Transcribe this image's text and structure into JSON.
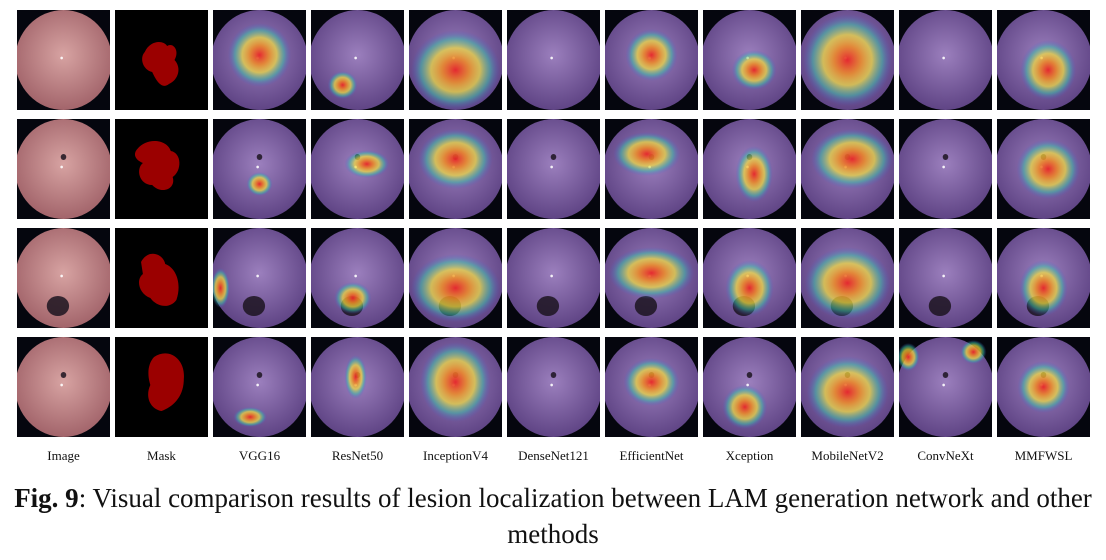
{
  "columns": [
    {
      "label": "Image",
      "kind": "image"
    },
    {
      "label": "Mask",
      "kind": "mask"
    },
    {
      "label": "VGG16",
      "kind": "cam"
    },
    {
      "label": "ResNet50",
      "kind": "cam"
    },
    {
      "label": "InceptionV4",
      "kind": "cam"
    },
    {
      "label": "DenseNet121",
      "kind": "cam"
    },
    {
      "label": "EfficientNet",
      "kind": "cam"
    },
    {
      "label": "Xception",
      "kind": "cam"
    },
    {
      "label": "MobileNetV2",
      "kind": "cam"
    },
    {
      "label": "ConvNeXt",
      "kind": "cam"
    },
    {
      "label": "MMFWSL",
      "kind": "cam"
    }
  ],
  "caption": {
    "figure_label": "Fig. 9",
    "text": ": Visual comparison results of lesion localization between LAM generation network and other methods"
  },
  "colors": {
    "tissue": "#c98f8f",
    "tissue_overlay": "#8d6fb0",
    "mask_fill": "#9b0000",
    "mask_bg": "#000000",
    "background": "#05060e"
  }
}
